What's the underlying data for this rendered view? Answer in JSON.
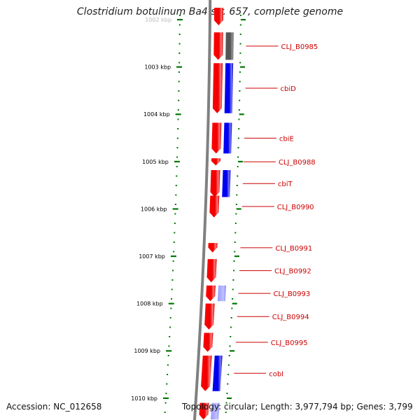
{
  "title": "Clostridium botulinum Ba4 str. 657, complete genome",
  "footer": {
    "accession": "Accession: NC_012658",
    "summary": "Topology: circular; Length: 3,977,794 bp; Genes: 3,799"
  },
  "colors": {
    "forward_gene": "#ff0000",
    "reverse_gene": "#0000ff",
    "other_gene": "#555555",
    "tick": "#007700",
    "label_line": "#cc0000",
    "backbone": "#808080"
  },
  "ticks": [
    {
      "kbp": 1002,
      "label": "1002 kbp"
    },
    {
      "kbp": 1003,
      "label": "1003 kbp"
    },
    {
      "kbp": 1004,
      "label": "1004 kbp"
    },
    {
      "kbp": 1005,
      "label": "1005 kbp"
    },
    {
      "kbp": 1006,
      "label": "1006 kbp"
    },
    {
      "kbp": 1007,
      "label": "1007 kbp"
    },
    {
      "kbp": 1008,
      "label": "1008 kbp"
    },
    {
      "kbp": 1009,
      "label": "1009 kbp"
    },
    {
      "kbp": 1010,
      "label": "1010 kbp"
    }
  ],
  "genes": [
    {
      "name": "",
      "start": 1001.75,
      "end": 1002.12,
      "strand": "+",
      "kind": "cds"
    },
    {
      "name": "CLJ_B0985",
      "start": 1002.27,
      "end": 1002.85,
      "strand": "+",
      "kind": "cds"
    },
    {
      "name": "",
      "start": 1002.27,
      "end": 1002.85,
      "strand": "-",
      "kind": "other"
    },
    {
      "name": "cbiD",
      "start": 1002.92,
      "end": 1003.98,
      "strand": "+",
      "kind": "cds"
    },
    {
      "name": "",
      "start": 1002.92,
      "end": 1003.98,
      "strand": "-",
      "kind": "cds"
    },
    {
      "name": "cbiE",
      "start": 1004.18,
      "end": 1004.83,
      "strand": "+",
      "kind": "cds"
    },
    {
      "name": "",
      "start": 1004.18,
      "end": 1004.83,
      "strand": "-",
      "kind": "cds"
    },
    {
      "name": "CLJ_B0988",
      "start": 1004.93,
      "end": 1005.08,
      "strand": "+",
      "kind": "cds"
    },
    {
      "name": "cbiT",
      "start": 1005.18,
      "end": 1005.75,
      "strand": "+",
      "kind": "cds"
    },
    {
      "name": "",
      "start": 1005.18,
      "end": 1005.75,
      "strand": "-",
      "kind": "cds"
    },
    {
      "name": "CLJ_B0990",
      "start": 1005.72,
      "end": 1006.18,
      "strand": "+",
      "kind": "cds"
    },
    {
      "name": "CLJ_B0991",
      "start": 1006.72,
      "end": 1006.92,
      "strand": "+",
      "kind": "cds"
    },
    {
      "name": "CLJ_B0992",
      "start": 1007.06,
      "end": 1007.55,
      "strand": "+",
      "kind": "cds"
    },
    {
      "name": "CLJ_B0993",
      "start": 1007.62,
      "end": 1007.95,
      "strand": "+",
      "kind": "cds"
    },
    {
      "name": "",
      "start": 1007.62,
      "end": 1007.95,
      "strand": "-",
      "kind": "faint"
    },
    {
      "name": "CLJ_B0994",
      "start": 1008.0,
      "end": 1008.55,
      "strand": "+",
      "kind": "cds"
    },
    {
      "name": "CLJ_B0995",
      "start": 1008.62,
      "end": 1009.02,
      "strand": "+",
      "kind": "cds"
    },
    {
      "name": "cobI",
      "start": 1009.1,
      "end": 1009.85,
      "strand": "+",
      "kind": "cds"
    },
    {
      "name": "",
      "start": 1009.1,
      "end": 1009.85,
      "strand": "-",
      "kind": "cds"
    },
    {
      "name": "",
      "start": 1010.1,
      "end": 1010.45,
      "strand": "+",
      "kind": "cds"
    },
    {
      "name": "",
      "start": 1010.1,
      "end": 1010.45,
      "strand": "-",
      "kind": "faint"
    }
  ]
}
